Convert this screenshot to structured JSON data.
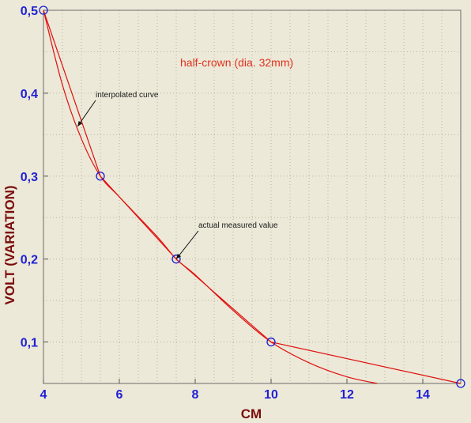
{
  "chart_data": {
    "type": "line",
    "title": "half-crown (dia. 32mm)",
    "xlabel": "CM",
    "ylabel": "VOLT (VARIATION)",
    "xlim": [
      4,
      15
    ],
    "ylim": [
      0.05,
      0.5
    ],
    "x_ticks": [
      4,
      6,
      8,
      10,
      12,
      14
    ],
    "y_ticks": [
      0.1,
      0.2,
      0.3,
      0.4,
      0.5
    ],
    "x_tick_labels": [
      "4",
      "6",
      "8",
      "10",
      "12",
      "14"
    ],
    "y_tick_labels": [
      "0,1",
      "0,2",
      "0,3",
      "0,4",
      "0,5"
    ],
    "grid": true,
    "series": [
      {
        "role": "measured",
        "x": [
          4,
          5.5,
          7.5,
          10,
          15
        ],
        "y": [
          0.5,
          0.3,
          0.2,
          0.1,
          0.05
        ]
      },
      {
        "role": "interpolated",
        "x": [
          4,
          4.5,
          5,
          5.5,
          6,
          7,
          7.5,
          8,
          9,
          10,
          11,
          12,
          12.8
        ],
        "y": [
          0.5,
          0.41,
          0.345,
          0.3,
          0.275,
          0.227,
          0.2,
          0.181,
          0.138,
          0.1,
          0.075,
          0.058,
          0.05
        ]
      }
    ],
    "annotations": [
      {
        "text": "interpolated curve",
        "x": 4.9,
        "y": 0.36
      },
      {
        "text": "actual measured value",
        "x": 7.5,
        "y": 0.2
      }
    ],
    "colors": {
      "line": "#e01010",
      "marker": "#1a1ad6",
      "tick_label": "#1f1fd6",
      "axis_title": "#7a0b0b",
      "title": "#e0301e",
      "background": "#ece9d8"
    }
  }
}
